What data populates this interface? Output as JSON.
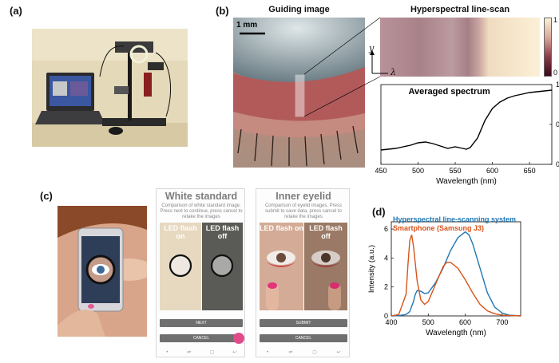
{
  "panels": {
    "a": {
      "label": "(a)"
    },
    "b": {
      "label": "(b)",
      "guiding_title": "Guiding image",
      "scale_bar": "1 mm",
      "hyper_title": "Hyperspectral line-scan",
      "y_axis": "y",
      "lambda_axis": "λ",
      "colorbar_ticks": [
        "1",
        "0"
      ]
    },
    "c": {
      "label": "(c)",
      "screen1": {
        "title": "White standard",
        "desc": "Comparison of white standard image. Press next to continue, press cancel to retake the images",
        "flash_on": "LED flash on",
        "flash_off": "LED flash off",
        "btn_primary": "NEXT",
        "btn_cancel": "CANCEL"
      },
      "screen2": {
        "title": "Inner eyelid",
        "desc": "Comparison of eyelid images. Press submit to save data, press cancel to retake the images",
        "flash_on": "LED flash on",
        "flash_off": "LED flash off",
        "btn_primary": "SUBMIT",
        "btn_cancel": "CANCEL"
      },
      "nav_icons": [
        "dot",
        "recent",
        "home",
        "back"
      ]
    },
    "d": {
      "label": "(d)"
    }
  },
  "chart_data": [
    {
      "type": "line",
      "title": "Averaged spectrum",
      "xlabel": "Wavelength (nm)",
      "ylabel": "",
      "xlim": [
        450,
        680
      ],
      "ylim": [
        0,
        1
      ],
      "xticks": [
        450,
        500,
        550,
        600,
        650
      ],
      "yticks": [
        0,
        0.5,
        1
      ],
      "series": [
        {
          "color": "#000000",
          "x": [
            450,
            460,
            470,
            480,
            490,
            500,
            510,
            520,
            530,
            540,
            550,
            560,
            565,
            570,
            580,
            590,
            600,
            610,
            620,
            630,
            640,
            650,
            660,
            670,
            680
          ],
          "y": [
            0.18,
            0.19,
            0.2,
            0.22,
            0.24,
            0.27,
            0.28,
            0.26,
            0.23,
            0.2,
            0.22,
            0.2,
            0.19,
            0.21,
            0.33,
            0.55,
            0.7,
            0.78,
            0.83,
            0.86,
            0.88,
            0.9,
            0.91,
            0.92,
            0.93
          ]
        }
      ]
    },
    {
      "type": "line",
      "title": "",
      "xlabel": "Wavelength (nm)",
      "ylabel": "Intensity (a.u.)",
      "xlim": [
        400,
        750
      ],
      "ylim": [
        0,
        6.5
      ],
      "xticks": [
        400,
        500,
        600,
        700
      ],
      "yticks": [
        0,
        2,
        4,
        6
      ],
      "legend": "top-left",
      "series": [
        {
          "name": "Hyperspectral line-scanning system",
          "color": "#1f77b4",
          "x": [
            400,
            420,
            440,
            450,
            460,
            465,
            470,
            480,
            490,
            500,
            520,
            540,
            560,
            580,
            600,
            610,
            620,
            640,
            660,
            680,
            700,
            720,
            750
          ],
          "y": [
            0,
            0.02,
            0.1,
            0.3,
            1.0,
            1.5,
            1.75,
            1.7,
            1.55,
            1.6,
            2.3,
            3.3,
            4.5,
            5.4,
            5.8,
            5.6,
            5.0,
            3.3,
            1.6,
            0.6,
            0.2,
            0.05,
            0
          ]
        },
        {
          "name": "Smartphone (Samsung J3)",
          "color": "#d95319",
          "x": [
            400,
            420,
            440,
            445,
            450,
            455,
            460,
            470,
            480,
            490,
            500,
            520,
            540,
            550,
            560,
            580,
            600,
            620,
            640,
            660,
            680,
            700,
            750
          ],
          "y": [
            0,
            0.1,
            1.5,
            3.5,
            5.2,
            5.6,
            4.8,
            2.4,
            1.1,
            0.8,
            1.0,
            2.2,
            3.4,
            3.7,
            3.7,
            3.3,
            2.5,
            1.6,
            0.8,
            0.35,
            0.15,
            0.05,
            0
          ]
        }
      ]
    }
  ]
}
